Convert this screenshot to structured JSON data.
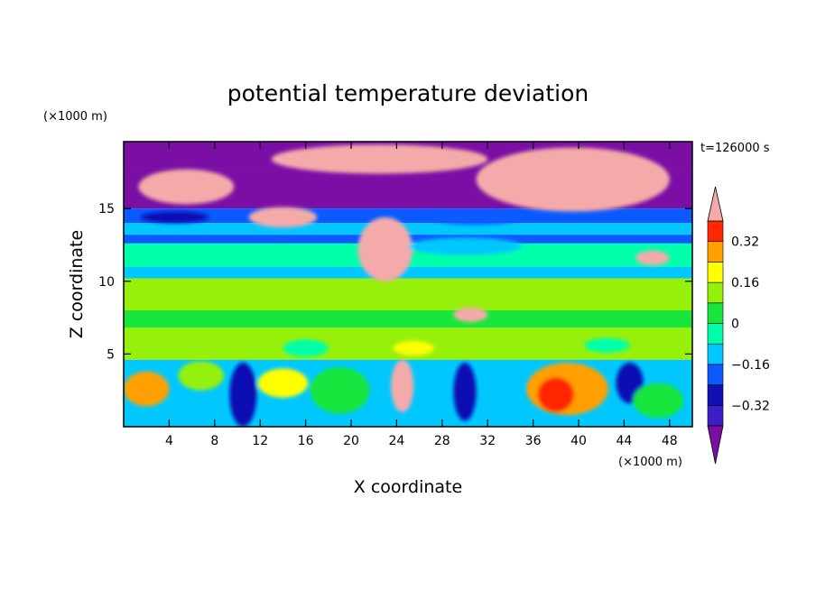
{
  "chart_data": {
    "type": "heatmap",
    "title": "potential temperature deviation",
    "xlabel": "X coordinate",
    "ylabel": "Z coordinate",
    "x_unit": "(×1000 m)",
    "y_unit": "(×1000 m)",
    "time_label": "t=126000 s",
    "xlim": [
      0,
      50
    ],
    "ylim": [
      0,
      19.6
    ],
    "x_ticks": [
      4,
      8,
      12,
      16,
      20,
      24,
      28,
      32,
      36,
      40,
      44,
      48
    ],
    "y_ticks": [
      5,
      10,
      15
    ],
    "grid": false,
    "colorbar": {
      "placement": "right",
      "levels": [
        -0.4,
        -0.32,
        -0.24,
        -0.16,
        -0.08,
        0,
        0.08,
        0.16,
        0.24,
        0.32,
        0.4
      ],
      "colors": [
        "#7b0fa5",
        "#3c1ec8",
        "#0f0fb4",
        "#0a5aff",
        "#00c8ff",
        "#00ffaa",
        "#19e63c",
        "#96f00a",
        "#ffff00",
        "#ffa000",
        "#ff2800",
        "#f5aaaa"
      ],
      "tick_labels": [
        "0.32",
        "0.16",
        "0",
        "−0.16",
        "−0.32"
      ],
      "tick_values": [
        0.32,
        0.16,
        0,
        -0.16,
        -0.32
      ]
    },
    "bands": [
      {
        "z": [
          17.8,
          19.6
        ],
        "color": "#7b0fa5"
      },
      {
        "z": [
          15.0,
          17.8
        ],
        "color": "#7b0fa5"
      },
      {
        "z": [
          14.0,
          15.0
        ],
        "color": "#0a5aff"
      },
      {
        "z": [
          13.2,
          14.0
        ],
        "color": "#00c8ff"
      },
      {
        "z": [
          12.6,
          13.2
        ],
        "color": "#0a5aff"
      },
      {
        "z": [
          11.0,
          12.6
        ],
        "color": "#00ffaa"
      },
      {
        "z": [
          10.2,
          11.0
        ],
        "color": "#00c8ff"
      },
      {
        "z": [
          8.0,
          10.2
        ],
        "color": "#96f00a"
      },
      {
        "z": [
          6.8,
          8.0
        ],
        "color": "#19e63c"
      },
      {
        "z": [
          4.6,
          6.8
        ],
        "color": "#96f00a"
      },
      {
        "z": [
          0,
          4.6
        ],
        "color": "#00c8ff"
      }
    ],
    "patches": [
      {
        "cx": 5.5,
        "cz": 16.5,
        "rx": 4.2,
        "rz": 1.2,
        "color": "#f5aaaa"
      },
      {
        "cx": 22.5,
        "cz": 18.4,
        "rx": 9.5,
        "rz": 1.0,
        "color": "#f5aaaa"
      },
      {
        "cx": 39.5,
        "cz": 17.0,
        "rx": 8.5,
        "rz": 2.2,
        "color": "#f5aaaa"
      },
      {
        "cx": 14.0,
        "cz": 14.4,
        "rx": 3.0,
        "rz": 0.7,
        "color": "#f5aaaa"
      },
      {
        "cx": 23.0,
        "cz": 12.2,
        "rx": 2.4,
        "rz": 2.2,
        "color": "#f5aaaa"
      },
      {
        "cx": 30.5,
        "cz": 7.7,
        "rx": 1.5,
        "rz": 0.5,
        "color": "#f5aaaa"
      },
      {
        "cx": 46.5,
        "cz": 11.6,
        "rx": 1.5,
        "rz": 0.5,
        "color": "#f5aaaa"
      },
      {
        "cx": 31.0,
        "cz": 14.3,
        "rx": 4.0,
        "rz": 0.4,
        "color": "#0a5aff"
      },
      {
        "cx": 4.5,
        "cz": 14.4,
        "rx": 3.0,
        "rz": 0.4,
        "color": "#0f0fb4"
      },
      {
        "cx": 30.0,
        "cz": 12.4,
        "rx": 5.0,
        "rz": 0.6,
        "color": "#00c8ff"
      },
      {
        "cx": 2.0,
        "cz": 2.6,
        "rx": 2.0,
        "rz": 1.2,
        "color": "#ffa000"
      },
      {
        "cx": 6.8,
        "cz": 3.5,
        "rx": 2.0,
        "rz": 1.0,
        "color": "#96f00a"
      },
      {
        "cx": 10.5,
        "cz": 2.2,
        "rx": 1.2,
        "rz": 2.2,
        "color": "#0f0fb4"
      },
      {
        "cx": 14.0,
        "cz": 3.0,
        "rx": 2.2,
        "rz": 1.0,
        "color": "#ffff00"
      },
      {
        "cx": 19.0,
        "cz": 2.5,
        "rx": 2.6,
        "rz": 1.6,
        "color": "#19e63c"
      },
      {
        "cx": 24.5,
        "cz": 2.8,
        "rx": 1.0,
        "rz": 1.8,
        "color": "#f5aaaa"
      },
      {
        "cx": 30.0,
        "cz": 2.4,
        "rx": 1.0,
        "rz": 2.0,
        "color": "#0f0fb4"
      },
      {
        "cx": 39.0,
        "cz": 2.6,
        "rx": 3.6,
        "rz": 1.8,
        "color": "#ffa000"
      },
      {
        "cx": 38.0,
        "cz": 2.2,
        "rx": 1.6,
        "rz": 1.2,
        "color": "#ff2800"
      },
      {
        "cx": 44.5,
        "cz": 3.0,
        "rx": 1.2,
        "rz": 1.4,
        "color": "#0f0fb4"
      },
      {
        "cx": 47.0,
        "cz": 1.8,
        "rx": 2.2,
        "rz": 1.2,
        "color": "#19e63c"
      },
      {
        "cx": 16.0,
        "cz": 5.4,
        "rx": 2.0,
        "rz": 0.6,
        "color": "#00ffaa"
      },
      {
        "cx": 25.5,
        "cz": 5.4,
        "rx": 1.8,
        "rz": 0.5,
        "color": "#ffff00"
      },
      {
        "cx": 42.5,
        "cz": 5.6,
        "rx": 2.0,
        "rz": 0.5,
        "color": "#00ffaa"
      }
    ]
  }
}
